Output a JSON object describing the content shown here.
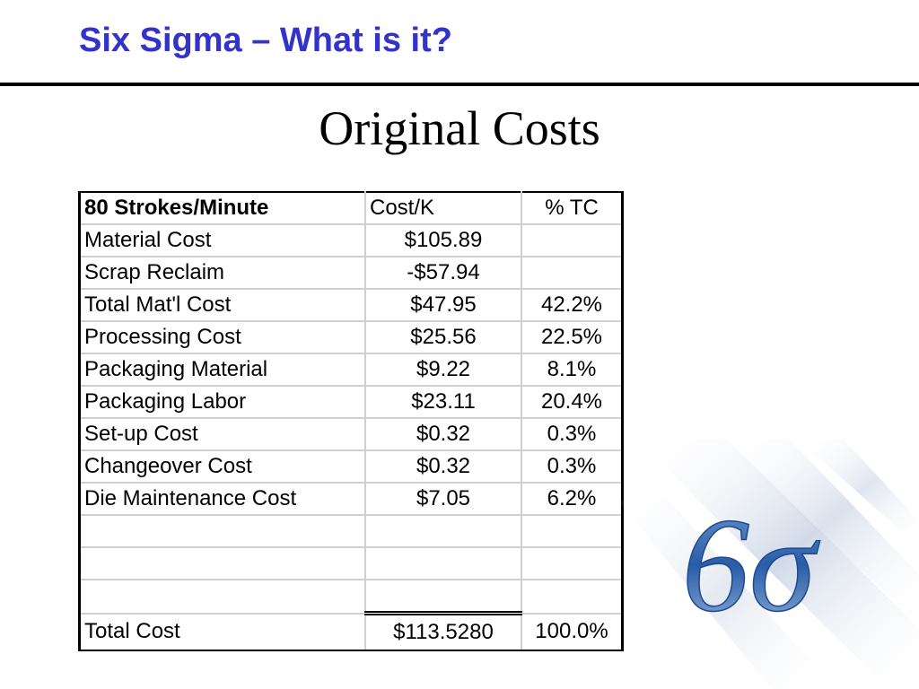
{
  "header": {
    "title": "Six Sigma – What is it?"
  },
  "slide": {
    "title": "Original Costs"
  },
  "table": {
    "headers": {
      "item": "80 Strokes/Minute",
      "cost": "Cost/K",
      "pct": "% TC"
    },
    "rows": [
      {
        "item": "Material Cost",
        "cost": "$105.89",
        "pct": ""
      },
      {
        "item": "Scrap Reclaim",
        "cost": "-$57.94",
        "pct": ""
      },
      {
        "item": "Total Mat'l Cost",
        "cost": "$47.95",
        "pct": "42.2%"
      },
      {
        "item": "Processing Cost",
        "cost": "$25.56",
        "pct": "22.5%"
      },
      {
        "item": "Packaging Material",
        "cost": "$9.22",
        "pct": "8.1%"
      },
      {
        "item": "Packaging Labor",
        "cost": "$23.11",
        "pct": "20.4%"
      },
      {
        "item": "Set-up Cost",
        "cost": "$0.32",
        "pct": "0.3%"
      },
      {
        "item": "Changeover Cost",
        "cost": "$0.32",
        "pct": "0.3%"
      },
      {
        "item": "Die Maintenance Cost",
        "cost": "$7.05",
        "pct": "6.2%"
      },
      {
        "item": "",
        "cost": "",
        "pct": ""
      },
      {
        "item": "",
        "cost": "",
        "pct": ""
      },
      {
        "item": "",
        "cost": "",
        "pct": ""
      }
    ],
    "total": {
      "item": "Total Cost",
      "cost": "$113.5280",
      "pct": "100.0%"
    }
  },
  "logo": {
    "name": "six-sigma-logo",
    "text": "6σ",
    "color": "#2a5da8"
  }
}
